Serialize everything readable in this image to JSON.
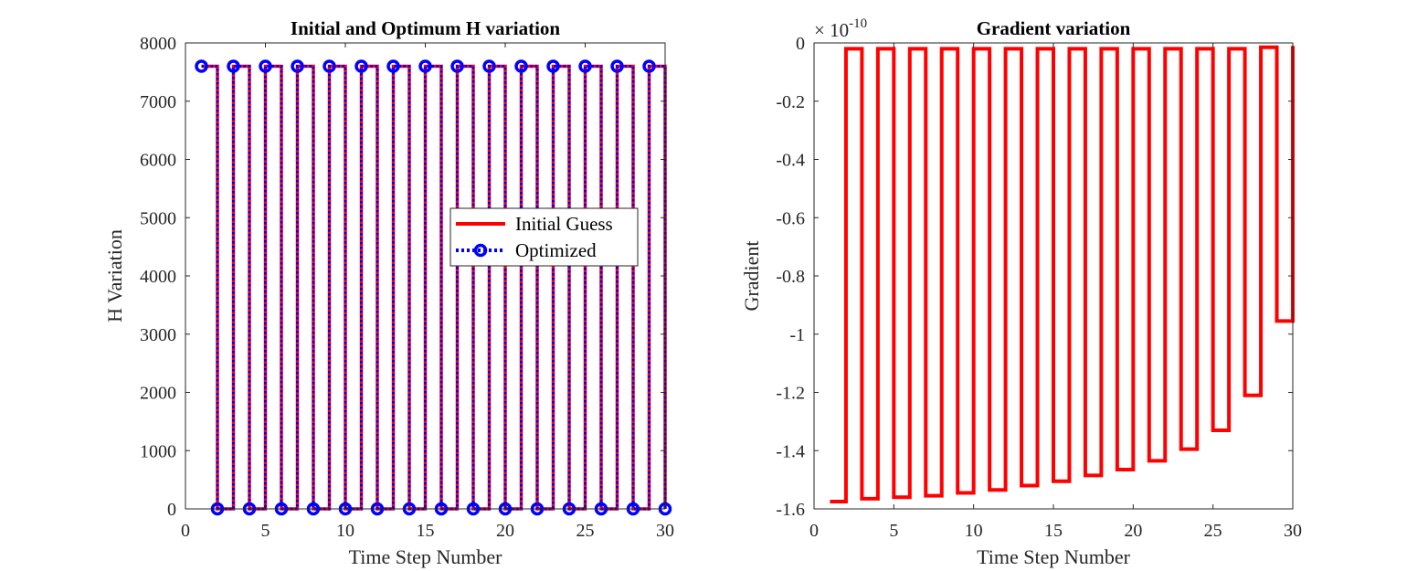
{
  "chart_data": [
    {
      "type": "line",
      "title": "Initial and Optimum H variation",
      "xlabel": "Time Step Number",
      "ylabel": "H Variation",
      "xlim": [
        0,
        30
      ],
      "ylim": [
        0,
        8000
      ],
      "xticks": [
        0,
        5,
        10,
        15,
        20,
        25,
        30
      ],
      "yticks": [
        0,
        1000,
        2000,
        3000,
        4000,
        5000,
        6000,
        7000,
        8000
      ],
      "grid": false,
      "legend_position": "center-right",
      "step_style": "stairs",
      "series": [
        {
          "name": "Initial Guess",
          "color": "#ff0000",
          "line": "solid",
          "x": [
            1,
            2,
            3,
            4,
            5,
            6,
            7,
            8,
            9,
            10,
            11,
            12,
            13,
            14,
            15,
            16,
            17,
            18,
            19,
            20,
            21,
            22,
            23,
            24,
            25,
            26,
            27,
            28,
            29,
            30
          ],
          "values": [
            7600,
            0,
            7600,
            0,
            7600,
            0,
            7600,
            0,
            7600,
            0,
            7600,
            0,
            7600,
            0,
            7600,
            0,
            7600,
            0,
            7600,
            0,
            7600,
            0,
            7600,
            0,
            7600,
            0,
            7600,
            0,
            7600,
            0
          ]
        },
        {
          "name": "Optimized",
          "color": "#0000ff",
          "line": "dotted",
          "marker": "circle",
          "x": [
            1,
            2,
            3,
            4,
            5,
            6,
            7,
            8,
            9,
            10,
            11,
            12,
            13,
            14,
            15,
            16,
            17,
            18,
            19,
            20,
            21,
            22,
            23,
            24,
            25,
            26,
            27,
            28,
            29,
            30
          ],
          "values": [
            7600,
            0,
            7600,
            0,
            7600,
            0,
            7600,
            0,
            7600,
            0,
            7600,
            0,
            7600,
            0,
            7600,
            0,
            7600,
            0,
            7600,
            0,
            7600,
            0,
            7600,
            0,
            7600,
            0,
            7600,
            0,
            7600,
            0
          ]
        }
      ]
    },
    {
      "type": "line",
      "title": "Gradient variation",
      "xlabel": "Time Step Number",
      "ylabel": "Gradient",
      "xlim": [
        0,
        30
      ],
      "ylim": [
        -1.6,
        0
      ],
      "xticks": [
        0,
        5,
        10,
        15,
        20,
        25,
        30
      ],
      "yticks": [
        -1.6,
        -1.4,
        -1.2,
        -1,
        -0.8,
        -0.6,
        -0.4,
        -0.2,
        0
      ],
      "ytick_labels": [
        "-1.6",
        "-1.4",
        "-1.2",
        "-1",
        "-0.8",
        "-0.6",
        "-0.4",
        "-0.2",
        "0"
      ],
      "xtick_labels": [
        "0",
        "5",
        "10",
        "15",
        "20",
        "25",
        "30"
      ],
      "multiplier_base": "× 10",
      "multiplier_exp": "-10",
      "grid": false,
      "step_style": "stairs",
      "series": [
        {
          "color": "#ff0000",
          "line": "solid",
          "x": [
            1,
            2,
            3,
            4,
            5,
            6,
            7,
            8,
            9,
            10,
            11,
            12,
            13,
            14,
            15,
            16,
            17,
            18,
            19,
            20,
            21,
            22,
            23,
            24,
            25,
            26,
            27,
            28,
            29,
            30
          ],
          "values": [
            -1.575,
            -0.02,
            -1.565,
            -0.02,
            -1.56,
            -0.02,
            -1.555,
            -0.02,
            -1.545,
            -0.02,
            -1.535,
            -0.02,
            -1.52,
            -0.02,
            -1.505,
            -0.02,
            -1.485,
            -0.02,
            -1.465,
            -0.02,
            -1.435,
            -0.02,
            -1.395,
            -0.02,
            -1.33,
            -0.02,
            -1.21,
            -0.015,
            -0.955,
            -0.01
          ]
        }
      ]
    }
  ],
  "left_xtick_labels": [
    "0",
    "5",
    "10",
    "15",
    "20",
    "25",
    "30"
  ],
  "left_ytick_labels": [
    "0",
    "1000",
    "2000",
    "3000",
    "4000",
    "5000",
    "6000",
    "7000",
    "8000"
  ]
}
